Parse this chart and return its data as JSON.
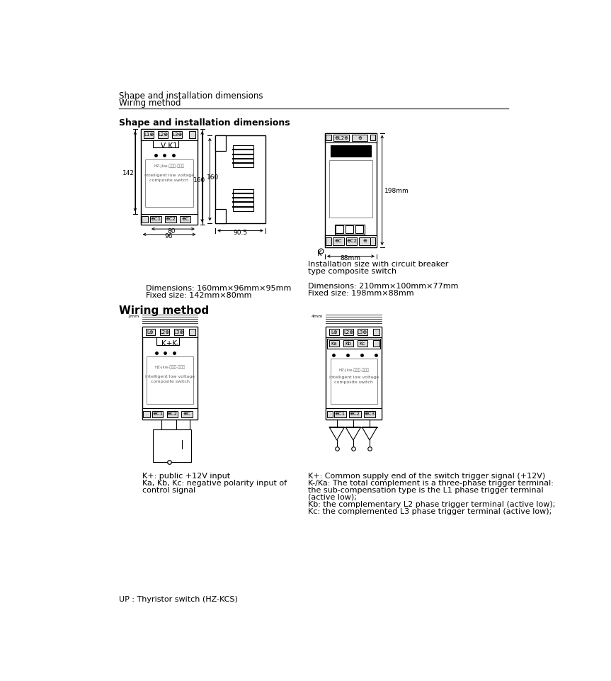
{
  "title_lines": [
    "Shape and installation dimensions",
    "Wiring method"
  ],
  "section1_title": "Shape and installation dimensions",
  "section2_title": "Wiring method",
  "dim1_text1": "Dimensions: 160mm×96mm×95mm",
  "dim1_text2": "Fixed size: 142mm×80mm",
  "dim2_caption1": "Installation size with circuit breaker",
  "dim2_caption2": "type composite switch",
  "dim2_text1": "Dimensions: 210mm×100mm×77mm",
  "dim2_text2": "Fixed size: 198mm×88mm",
  "wire1_text1": "K+: public +12V input",
  "wire1_text2": "Ka, Kb, Kc: negative polarity input of",
  "wire1_text3": "control signal",
  "wire2_text1": "K+: Common supply end of the switch trigger signal (+12V)",
  "wire2_text2": "K-/Ka: The total complement is a three-phase trigger terminal:",
  "wire2_text3": "the sub-compensation type is the L1 phase trigger terminal",
  "wire2_text4": "(active low);",
  "wire2_text5": "Kb: the complementary L2 phase trigger terminal (active low);",
  "wire2_text6": "Kc: the complemented L3 phase trigger terminal (active low);",
  "footer": "UP : Thyristor switch (HZ-KCS)",
  "bg_color": "#ffffff"
}
